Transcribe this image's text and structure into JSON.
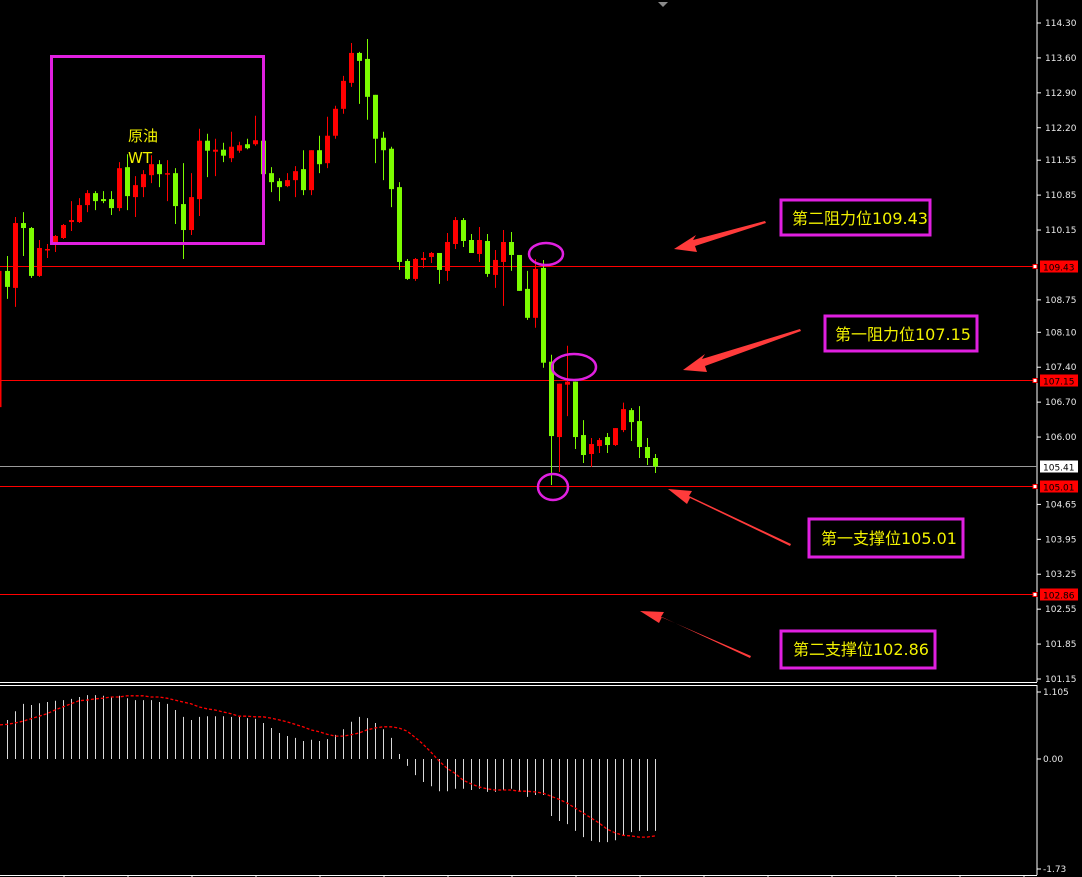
{
  "chart_data": {
    "type": "candlestick",
    "title": "",
    "colors": {
      "up": "#ff0000",
      "down": "#7cfc00",
      "level": "#ff0000",
      "current": "#9a9a9a",
      "annotation_box": "#e020e0",
      "annotation_text": "#f2f200",
      "arrow": "#ff3b3b",
      "macd_hist": "#d8d8d8",
      "macd_signal": "#ff0000"
    },
    "price_axis": {
      "ylim": [
        101.15,
        114.3
      ],
      "ticks": [
        "114.30",
        "113.60",
        "112.90",
        "112.20",
        "111.55",
        "110.85",
        "110.15",
        "108.75",
        "108.10",
        "107.40",
        "106.70",
        "106.00",
        "104.65",
        "103.95",
        "103.25",
        "102.55",
        "101.85",
        "101.15"
      ]
    },
    "candles_ohlc": [
      [
        109.33,
        109.63,
        108.77,
        109.01
      ],
      [
        108.99,
        110.41,
        108.61,
        110.29
      ],
      [
        110.29,
        110.51,
        109.63,
        110.19
      ],
      [
        110.19,
        110.21,
        109.19,
        109.23
      ],
      [
        109.23,
        109.95,
        109.21,
        109.79
      ],
      [
        109.75,
        109.87,
        109.59,
        109.77
      ],
      [
        109.91,
        110.05,
        109.71,
        110.03
      ],
      [
        109.99,
        110.27,
        109.97,
        110.25
      ],
      [
        110.31,
        110.73,
        110.13,
        110.35
      ],
      [
        110.31,
        110.79,
        110.29,
        110.65
      ],
      [
        110.65,
        110.95,
        110.51,
        110.89
      ],
      [
        110.89,
        110.93,
        110.55,
        110.73
      ],
      [
        110.77,
        110.93,
        110.69,
        110.73
      ],
      [
        110.77,
        110.93,
        110.45,
        110.59
      ],
      [
        110.59,
        111.51,
        110.53,
        111.39
      ],
      [
        111.41,
        111.67,
        110.55,
        110.83
      ],
      [
        110.81,
        111.23,
        110.41,
        111.05
      ],
      [
        111.01,
        111.35,
        110.81,
        111.27
      ],
      [
        111.25,
        111.65,
        111.09,
        111.47
      ],
      [
        111.47,
        111.55,
        111.01,
        111.27
      ],
      [
        111.27,
        111.55,
        110.73,
        111.29
      ],
      [
        111.29,
        111.39,
        110.27,
        110.63
      ],
      [
        110.67,
        111.49,
        109.57,
        110.15
      ],
      [
        110.15,
        111.29,
        110.05,
        110.81
      ],
      [
        110.77,
        112.18,
        110.43,
        111.94
      ],
      [
        111.94,
        112.08,
        111.21,
        111.74
      ],
      [
        111.72,
        111.98,
        111.23,
        111.76
      ],
      [
        111.76,
        111.9,
        111.51,
        111.64
      ],
      [
        111.59,
        112.12,
        111.51,
        111.82
      ],
      [
        111.74,
        111.92,
        111.7,
        111.85
      ],
      [
        111.87,
        111.98,
        111.77,
        111.79
      ],
      [
        111.87,
        112.44,
        111.84,
        111.95
      ],
      [
        111.94,
        111.95,
        111.25,
        111.27
      ],
      [
        111.29,
        111.41,
        110.91,
        111.11
      ],
      [
        111.13,
        111.19,
        110.73,
        111.01
      ],
      [
        111.03,
        111.29,
        111.01,
        111.15
      ],
      [
        111.15,
        111.43,
        110.81,
        111.33
      ],
      [
        111.37,
        111.75,
        110.85,
        110.95
      ],
      [
        110.95,
        111.75,
        110.85,
        111.75
      ],
      [
        111.75,
        112.04,
        111.29,
        111.47
      ],
      [
        111.49,
        112.42,
        111.39,
        112.04
      ],
      [
        112.04,
        112.64,
        111.98,
        112.58
      ],
      [
        112.58,
        113.24,
        112.48,
        113.14
      ],
      [
        113.1,
        113.9,
        113.02,
        113.7
      ],
      [
        113.7,
        113.72,
        112.68,
        113.54
      ],
      [
        113.58,
        113.98,
        112.36,
        112.82
      ],
      [
        112.86,
        112.86,
        111.49,
        111.98
      ],
      [
        112.0,
        112.12,
        111.15,
        111.75
      ],
      [
        111.78,
        111.82,
        110.61,
        110.97
      ],
      [
        111.01,
        111.11,
        109.35,
        109.51
      ],
      [
        109.53,
        109.57,
        109.15,
        109.17
      ],
      [
        109.17,
        109.59,
        109.13,
        109.57
      ],
      [
        109.55,
        109.71,
        109.39,
        109.59
      ],
      [
        109.61,
        109.71,
        109.49,
        109.69
      ],
      [
        109.69,
        109.69,
        109.07,
        109.35
      ],
      [
        109.33,
        110.09,
        109.13,
        109.91
      ],
      [
        109.87,
        110.41,
        109.77,
        110.35
      ],
      [
        110.35,
        110.39,
        109.81,
        109.93
      ],
      [
        109.95,
        110.07,
        109.69,
        109.69
      ],
      [
        109.67,
        110.21,
        109.51,
        109.95
      ],
      [
        109.93,
        110.07,
        109.21,
        109.27
      ],
      [
        109.25,
        109.75,
        108.99,
        109.55
      ],
      [
        109.51,
        110.15,
        108.63,
        109.91
      ],
      [
        109.91,
        110.11,
        109.33,
        109.65
      ],
      [
        109.65,
        109.65,
        108.93,
        108.93
      ],
      [
        108.97,
        109.33,
        108.35,
        108.39
      ],
      [
        108.39,
        109.57,
        108.19,
        109.37
      ],
      [
        109.39,
        109.55,
        107.39,
        107.49
      ],
      [
        107.51,
        107.65,
        105.04,
        106.02
      ],
      [
        106.0,
        107.07,
        105.3,
        107.07
      ],
      [
        107.05,
        107.83,
        106.42,
        107.11
      ],
      [
        107.11,
        107.11,
        105.76,
        106.0
      ],
      [
        106.04,
        106.34,
        105.48,
        105.64
      ],
      [
        105.66,
        105.98,
        105.4,
        105.86
      ],
      [
        105.82,
        105.98,
        105.68,
        105.94
      ],
      [
        106.0,
        106.08,
        105.68,
        105.84
      ],
      [
        105.84,
        106.18,
        105.82,
        106.18
      ],
      [
        106.14,
        106.69,
        106.1,
        106.56
      ],
      [
        106.54,
        106.58,
        105.92,
        106.3
      ],
      [
        106.32,
        106.62,
        105.58,
        105.8
      ],
      [
        105.8,
        105.98,
        105.44,
        105.58
      ],
      [
        105.58,
        105.66,
        105.28,
        105.41
      ]
    ],
    "levels": [
      {
        "value": 109.43,
        "label": "109.43"
      },
      {
        "value": 107.15,
        "label": "107.15"
      },
      {
        "value": 105.01,
        "label": "105.01"
      },
      {
        "value": 102.86,
        "label": "102.86"
      }
    ],
    "current_price": {
      "value": 105.41,
      "label": "105.41"
    },
    "macd": {
      "ylim": [
        -1.73,
        1.105
      ],
      "ticks": [
        "1.105",
        "0.00",
        "-1.73"
      ],
      "histogram": [
        0.63,
        0.77,
        0.89,
        0.87,
        0.9,
        0.92,
        0.94,
        0.95,
        0.97,
        1.0,
        1.03,
        1.03,
        1.02,
        1.0,
        1.02,
        0.98,
        0.95,
        0.95,
        0.95,
        0.92,
        0.89,
        0.79,
        0.68,
        0.63,
        0.68,
        0.69,
        0.69,
        0.69,
        0.68,
        0.68,
        0.66,
        0.65,
        0.58,
        0.5,
        0.42,
        0.37,
        0.34,
        0.29,
        0.31,
        0.29,
        0.32,
        0.39,
        0.48,
        0.6,
        0.68,
        0.66,
        0.58,
        0.48,
        0.34,
        0.08,
        -0.11,
        -0.26,
        -0.37,
        -0.44,
        -0.52,
        -0.52,
        -0.48,
        -0.48,
        -0.5,
        -0.48,
        -0.53,
        -0.53,
        -0.5,
        -0.48,
        -0.53,
        -0.61,
        -0.58,
        -0.58,
        -0.92,
        -1.0,
        -1.05,
        -1.16,
        -1.26,
        -1.32,
        -1.34,
        -1.34,
        -1.31,
        -1.23,
        -1.18,
        -1.16,
        -1.16,
        -1.16
      ],
      "signal": [
        0.56,
        0.58,
        0.61,
        0.65,
        0.69,
        0.73,
        0.79,
        0.84,
        0.89,
        0.94,
        0.95,
        0.97,
        0.98,
        1.0,
        1.0,
        1.02,
        1.02,
        1.02,
        1.0,
        1.0,
        0.98,
        0.95,
        0.92,
        0.89,
        0.84,
        0.81,
        0.79,
        0.76,
        0.73,
        0.69,
        0.69,
        0.68,
        0.68,
        0.66,
        0.63,
        0.6,
        0.56,
        0.52,
        0.47,
        0.44,
        0.4,
        0.37,
        0.37,
        0.39,
        0.42,
        0.47,
        0.5,
        0.52,
        0.52,
        0.5,
        0.45,
        0.35,
        0.24,
        0.11,
        -0.03,
        -0.15,
        -0.23,
        -0.34,
        -0.4,
        -0.45,
        -0.48,
        -0.5,
        -0.5,
        -0.5,
        -0.52,
        -0.52,
        -0.53,
        -0.55,
        -0.6,
        -0.65,
        -0.71,
        -0.79,
        -0.87,
        -0.95,
        -1.03,
        -1.13,
        -1.19,
        -1.23,
        -1.24,
        -1.26,
        -1.26,
        -1.24
      ]
    },
    "annotations": {
      "symbol_line1": "原油",
      "symbol_line2": "WT",
      "resistance_2": "第二阻力位109.43",
      "resistance_1": "第一阻力位107.15",
      "support_1": "第一支撑位105.01",
      "support_2": "第二支撑位102.86"
    }
  }
}
